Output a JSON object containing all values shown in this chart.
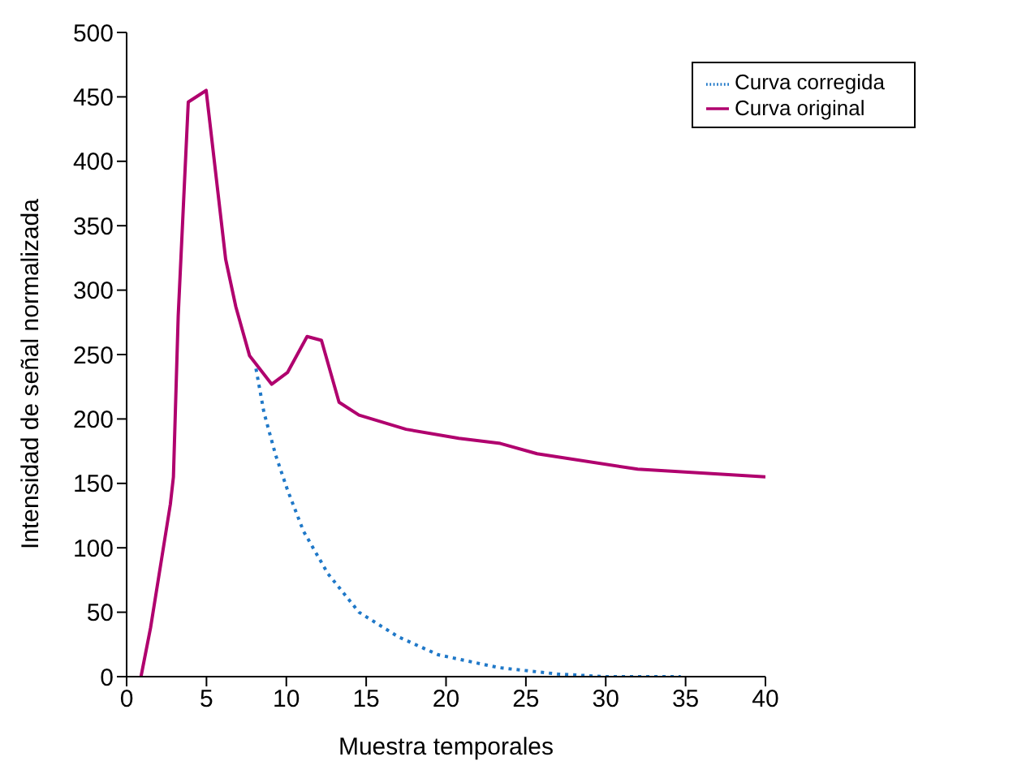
{
  "chart_data": {
    "type": "line",
    "xlabel": "Muestra temporales",
    "ylabel": "Intensidad de señal normalizada",
    "xlim": [
      0,
      40
    ],
    "xticks": [
      0,
      5,
      10,
      15,
      20,
      25,
      30,
      35,
      40
    ],
    "ylim": [
      0,
      500
    ],
    "yticks": [
      0,
      50,
      100,
      150,
      200,
      250,
      300,
      350,
      400,
      450,
      500
    ],
    "grid": false,
    "legend": "top right",
    "marker": "none",
    "series": [
      {
        "name": "Curva corregida",
        "color": "#1f78c8",
        "line_style": "dotted",
        "x": [
          8.1,
          8.6,
          9.33,
          10.07,
          11.07,
          12.6,
          14.55,
          17,
          19.5,
          23.3,
          27,
          30,
          34.7
        ],
        "values": [
          239,
          205,
          172,
          145,
          113,
          80,
          50,
          31,
          17,
          7,
          2,
          0,
          0
        ]
      },
      {
        "name": "Curva original",
        "color": "#b0006e",
        "line_style": "solid",
        "x": [
          0.9,
          1.5,
          2.74,
          2.93,
          3.23,
          3.86,
          4.98,
          6.2,
          6.84,
          7.7,
          9.08,
          10.07,
          11.3,
          12.2,
          13.3,
          14.55,
          17.5,
          20.8,
          23.4,
          25.7,
          32,
          40
        ],
        "values": [
          0,
          38,
          134,
          155,
          280,
          446,
          455,
          324,
          287,
          249,
          227,
          236,
          264,
          261,
          213,
          203,
          192,
          185,
          181,
          173,
          161,
          155
        ]
      }
    ]
  }
}
